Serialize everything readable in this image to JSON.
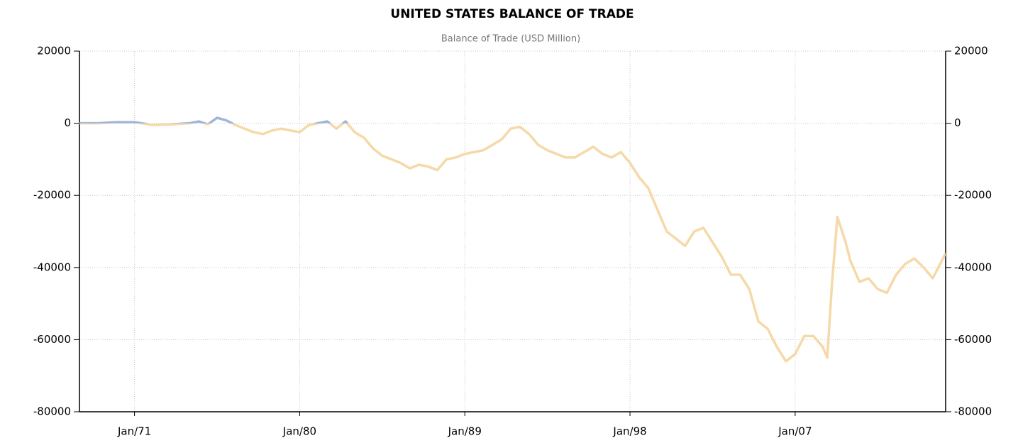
{
  "chart_data": {
    "type": "line",
    "title": "UNITED STATES BALANCE OF TRADE",
    "subtitle": "Balance of Trade (USD Million)",
    "x": [
      1968,
      1969,
      1970,
      1971,
      1972,
      1973,
      1974,
      1974.5,
      1975,
      1975.5,
      1976,
      1976.5,
      1977,
      1977.5,
      1978,
      1978.5,
      1979,
      1979.5,
      1980,
      1980.5,
      1981,
      1981.5,
      1982,
      1982.5,
      1983,
      1983.5,
      1984,
      1984.5,
      1985,
      1985.5,
      1986,
      1986.5,
      1987,
      1987.5,
      1988,
      1988.5,
      1989,
      1989.5,
      1990,
      1990.5,
      1991,
      1991.5,
      1992,
      1992.5,
      1993,
      1993.5,
      1994,
      1994.5,
      1995,
      1995.5,
      1996,
      1996.5,
      1997,
      1997.5,
      1998,
      1998.5,
      1999,
      1999.5,
      2000,
      2000.5,
      2001,
      2001.5,
      2002,
      2002.5,
      2003,
      2003.5,
      2004,
      2004.5,
      2005,
      2005.5,
      2006,
      2006.5,
      2007,
      2007.5,
      2008,
      2008.5,
      2008.75,
      2009,
      2009.3,
      2009.75,
      2010,
      2010.5,
      2011,
      2011.5,
      2012,
      2012.5,
      2013,
      2013.5,
      2014,
      2014.5,
      2015.2
    ],
    "series": [
      {
        "name": "Balance of Trade",
        "positive_color": "#9db5dc",
        "negative_color": "#f5d9a8",
        "values": [
          0,
          0,
          300,
          300,
          -500,
          -300,
          0,
          500,
          -300,
          1500,
          800,
          -500,
          -1500,
          -2500,
          -3000,
          -2000,
          -1500,
          -2000,
          -2500,
          -500,
          0,
          500,
          -1500,
          500,
          -2500,
          -4000,
          -7000,
          -9000,
          -10000,
          -11000,
          -12500,
          -11500,
          -12000,
          -13000,
          -10000,
          -9500,
          -8500,
          -8000,
          -7500,
          -6000,
          -4500,
          -1500,
          -1000,
          -3000,
          -6000,
          -7500,
          -8500,
          -9500,
          -9500,
          -8000,
          -6500,
          -8500,
          -9500,
          -8000,
          -11000,
          -15000,
          -18000,
          -24000,
          -30000,
          -32000,
          -34000,
          -30000,
          -29000,
          -33000,
          -37000,
          -42000,
          -42000,
          -46000,
          -55000,
          -57000,
          -62000,
          -66000,
          -64000,
          -59000,
          -59000,
          -62000,
          -65000,
          -45000,
          -26000,
          -33000,
          -38000,
          -44000,
          -43000,
          -46000,
          -47000,
          -42000,
          -39000,
          -37500,
          -40000,
          -43000,
          -36000
        ]
      }
    ],
    "xlim": [
      1968,
      2015.2
    ],
    "xticks": [
      {
        "value": 1971,
        "label": "Jan/71"
      },
      {
        "value": 1980,
        "label": "Jan/80"
      },
      {
        "value": 1989,
        "label": "Jan/89"
      },
      {
        "value": 1998,
        "label": "Jan/98"
      },
      {
        "value": 2007,
        "label": "Jan/07"
      }
    ],
    "ylim": [
      -80000,
      20000
    ],
    "yticks": [
      -80000,
      -60000,
      -40000,
      -20000,
      0,
      20000
    ],
    "grid": true,
    "right_axis": true
  }
}
